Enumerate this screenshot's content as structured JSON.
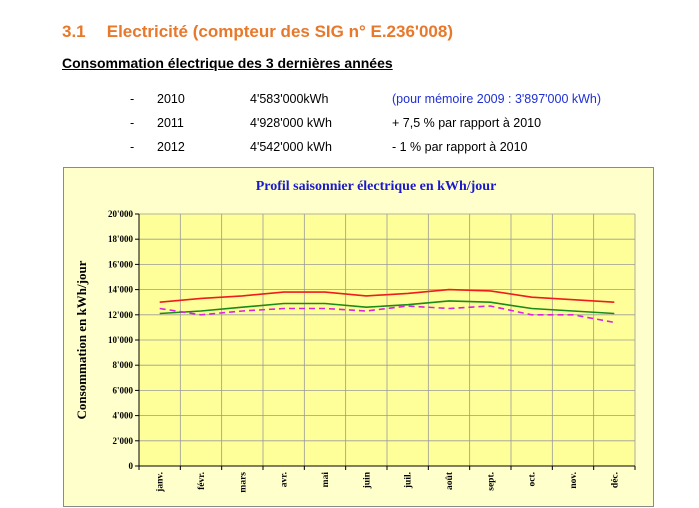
{
  "section": {
    "number": "3.1",
    "title": "Electricité (compteur des SIG n° E.236'008)"
  },
  "subheading": "Consommation électrique des 3 dernières années",
  "consumption": [
    {
      "bullet": "-",
      "year": "2010",
      "value": "4'583'000kWh",
      "note": "(pour mémoire 2009 : 3'897'000 kWh)",
      "note_color": "#1f2fd6"
    },
    {
      "bullet": "-",
      "year": "2011",
      "value": "4'928'000 kWh",
      "note": "+ 7,5 % par rapport à 2010",
      "note_color": "#000000"
    },
    {
      "bullet": "-",
      "year": "2012",
      "value": "4'542'000 kWh",
      "note": "-     1 % par rapport à 2010",
      "note_color": "#000000"
    }
  ],
  "chart_data": {
    "type": "line",
    "title": "Profil saisonnier électrique  en kWh/jour",
    "xlabel": "",
    "ylabel": "Consommation en kWh/jour",
    "categories": [
      "janv.",
      "févr.",
      "mars",
      "avr.",
      "mai",
      "juin",
      "juil.",
      "août",
      "sept.",
      "oct.",
      "nov.",
      "déc."
    ],
    "ylim": [
      0,
      20000
    ],
    "yticks": [
      "0",
      "2'000",
      "4'000",
      "6'000",
      "8'000",
      "10'000",
      "12'000",
      "14'000",
      "16'000",
      "18'000",
      "20'000"
    ],
    "grid": true,
    "series": [
      {
        "color": "#ee1c1c",
        "dash": "solid",
        "values": [
          13000,
          13300,
          13500,
          13800,
          13800,
          13500,
          13700,
          14000,
          13900,
          13400,
          13200,
          13000
        ]
      },
      {
        "color": "#1a8a1a",
        "dash": "solid",
        "values": [
          12100,
          12300,
          12600,
          12900,
          12900,
          12600,
          12800,
          13100,
          13000,
          12500,
          12300,
          12100
        ]
      },
      {
        "color": "#dd22dd",
        "dash": "dashed",
        "values": [
          12500,
          12000,
          12300,
          12500,
          12500,
          12300,
          12700,
          12500,
          12700,
          12000,
          12000,
          11400
        ]
      }
    ],
    "colors": {
      "plot_background": "#ffff99",
      "frame_background": "#ffffcc",
      "title": "#1a1acc"
    }
  }
}
